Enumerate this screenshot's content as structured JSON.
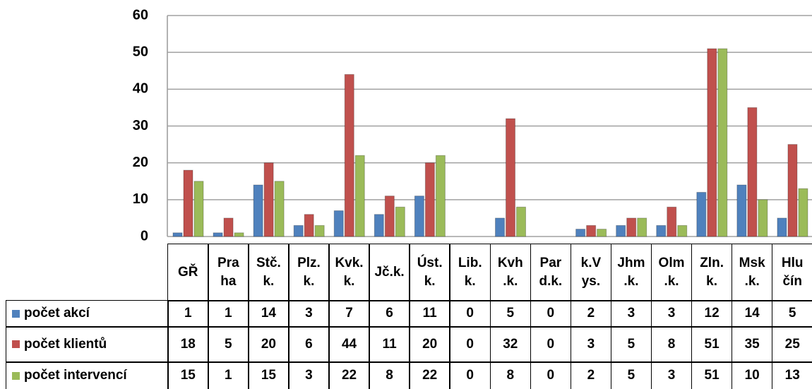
{
  "chart_data": {
    "type": "bar",
    "categories": [
      "GŘ",
      "Pra\nha",
      "Stč.\nk.",
      "Plz.\nk.",
      "Kvk.\nk.",
      "Jč.k.",
      "Úst.\nk.",
      "Lib.\nk.",
      "Kvh\n.k.",
      "Par\nd.k.",
      "k.V\nys.",
      "Jhm\n.k.",
      "Olm\n.k.",
      "Zln.\nk.",
      "Msk\n.k.",
      "Hlu\nčín"
    ],
    "series": [
      {
        "name": "počet akcí",
        "color": "#4f81bd",
        "values": [
          1,
          1,
          14,
          3,
          7,
          6,
          11,
          0,
          5,
          0,
          2,
          3,
          3,
          12,
          14,
          5
        ]
      },
      {
        "name": "počet klientů",
        "color": "#c0504d",
        "values": [
          18,
          5,
          20,
          6,
          44,
          11,
          20,
          0,
          32,
          0,
          3,
          5,
          8,
          51,
          35,
          25
        ]
      },
      {
        "name": "počet intervencí",
        "color": "#9bbb59",
        "values": [
          15,
          1,
          15,
          3,
          22,
          8,
          22,
          0,
          8,
          0,
          2,
          5,
          3,
          51,
          10,
          13
        ]
      }
    ],
    "ylim": [
      0,
      60
    ],
    "yticks": [
      0,
      10,
      20,
      30,
      40,
      50,
      60
    ],
    "grid": true
  }
}
